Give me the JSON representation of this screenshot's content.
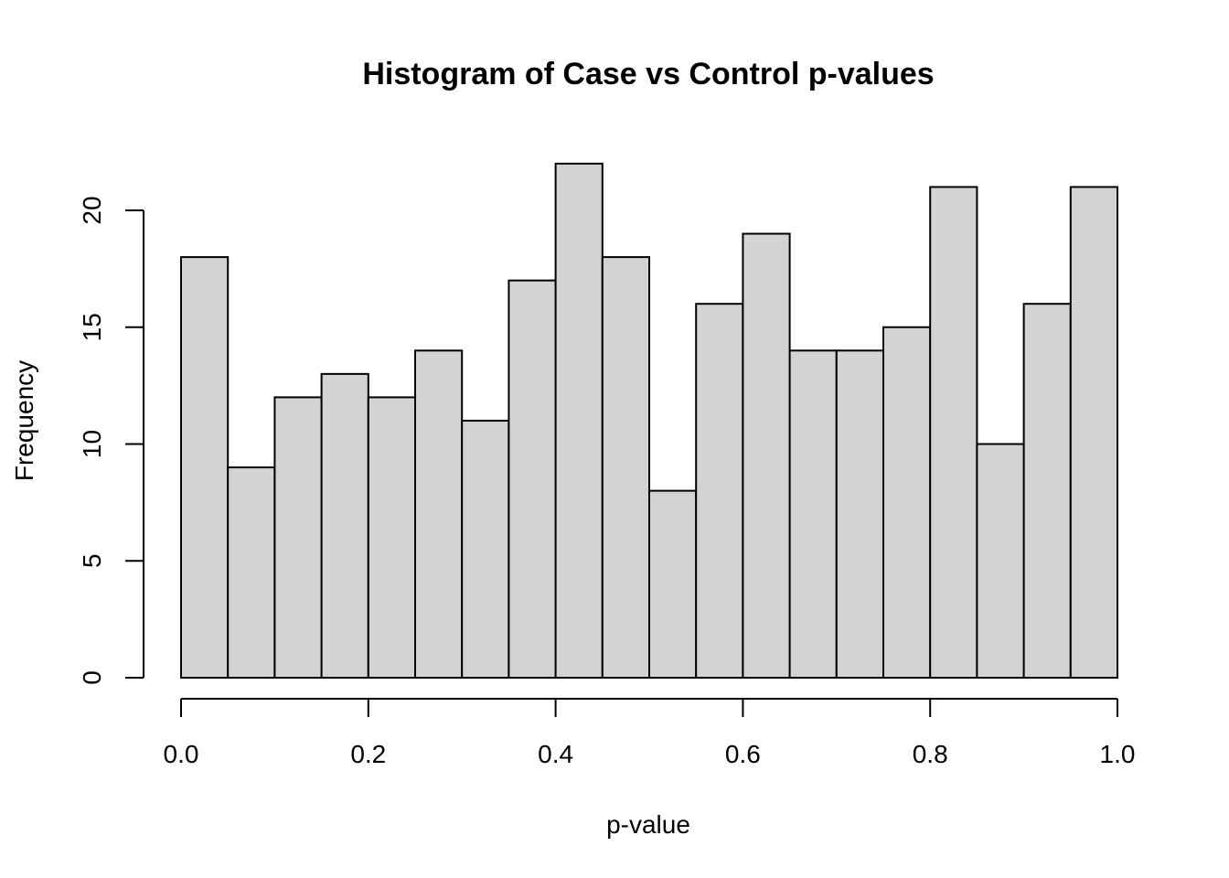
{
  "chart_data": {
    "type": "bar",
    "title": "Histogram of Case vs Control p-values",
    "xlabel": "p-value",
    "ylabel": "Frequency",
    "bin_edges": [
      0.0,
      0.05,
      0.1,
      0.15,
      0.2,
      0.25,
      0.3,
      0.35,
      0.4,
      0.45,
      0.5,
      0.55,
      0.6,
      0.65,
      0.7,
      0.75,
      0.8,
      0.85,
      0.9,
      0.95,
      1.0
    ],
    "values": [
      18,
      9,
      12,
      13,
      12,
      14,
      11,
      17,
      22,
      18,
      8,
      16,
      19,
      14,
      14,
      15,
      21,
      10,
      16,
      21
    ],
    "xlim": [
      0.0,
      1.0
    ],
    "ylim": [
      0,
      20
    ],
    "x_ticks": [
      "0.0",
      "0.2",
      "0.4",
      "0.6",
      "0.8",
      "1.0"
    ],
    "y_ticks": [
      "0",
      "5",
      "10",
      "15",
      "20"
    ],
    "grid": false,
    "bar_color": "#d3d3d3",
    "edge_color": "#000000"
  }
}
